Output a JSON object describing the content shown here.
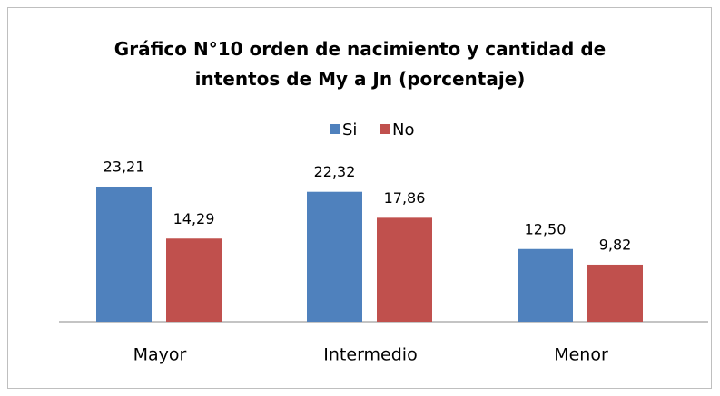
{
  "chart_data": {
    "type": "bar",
    "title": "Gráfico N°10 orden de nacimiento y cantidad de intentos de My a Jn (porcentaje)",
    "categories": [
      "Mayor",
      "Intermedio",
      "Menor"
    ],
    "series": [
      {
        "name": "Si",
        "color": "#4f81bd",
        "values": [
          23.21,
          22.32,
          12.5
        ],
        "value_labels": [
          "23,21",
          "22,32",
          "12,50"
        ]
      },
      {
        "name": "No",
        "color": "#c0504d",
        "values": [
          14.29,
          17.86,
          9.82
        ],
        "value_labels": [
          "14,29",
          "17,86",
          "9,82"
        ]
      }
    ],
    "ylim": [
      0,
      25
    ],
    "legend": "top"
  }
}
